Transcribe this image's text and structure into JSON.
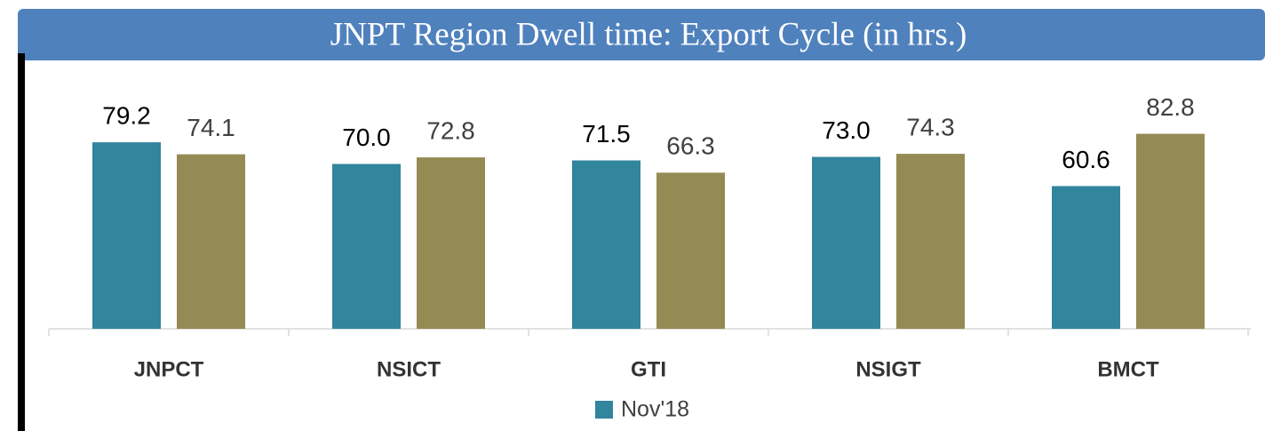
{
  "chart_data": {
    "type": "bar",
    "title": "JNPT Region Dwell time: Export Cycle (in hrs.)",
    "categories": [
      "JNPCT",
      "NSICT",
      "GTI",
      "NSIGT",
      "BMCT"
    ],
    "series": [
      {
        "name": "Nov'18",
        "color": "#31859c",
        "values": [
          79.2,
          70,
          71.5,
          73,
          60.6
        ],
        "value_labels": [
          "79.2",
          "70.0",
          "71.5",
          "73.0",
          "60.6"
        ]
      },
      {
        "color": "#948a54",
        "values": [
          74.1,
          72.8,
          66.3,
          74.3,
          82.8
        ],
        "value_labels": [
          "74.1",
          "72.8",
          "66.3",
          "74.3",
          "82.8"
        ]
      }
    ],
    "ylim": [
      0,
      100
    ]
  }
}
